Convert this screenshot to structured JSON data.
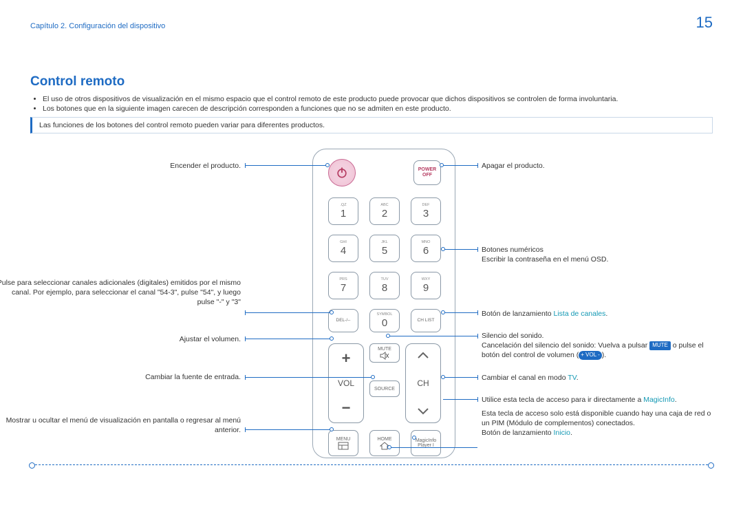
{
  "header": {
    "chapter": "Capítulo 2. Configuración del dispositivo",
    "page": "15"
  },
  "title": "Control remoto",
  "bullets": [
    "El uso de otros dispositivos de visualización en el mismo espacio que el control remoto de este producto puede provocar que dichos dispositivos se controlen de forma involuntaria.",
    "Los botones que en la siguiente imagen carecen de descripción corresponden a funciones que no se admiten en este producto."
  ],
  "note": "Las funciones de los botones del control remoto pueden variar para diferentes productos.",
  "remote": {
    "power_off_l1": "POWER",
    "power_off_l2": "OFF",
    "keys": [
      {
        "sup": ".QZ",
        "main": "1"
      },
      {
        "sup": "ABC",
        "main": "2"
      },
      {
        "sup": "DEF",
        "main": "3"
      },
      {
        "sup": "GHI",
        "main": "4"
      },
      {
        "sup": "JKL",
        "main": "5"
      },
      {
        "sup": "MNO",
        "main": "6"
      },
      {
        "sup": "PRS",
        "main": "7"
      },
      {
        "sup": "TUV",
        "main": "8"
      },
      {
        "sup": "WXY",
        "main": "9"
      }
    ],
    "del": "DEL-/--",
    "sym_sup": "SYMBOL",
    "zero": "0",
    "chlist": "CH LIST",
    "mute": "MUTE",
    "source": "SOURCE",
    "vol": "VOL",
    "ch": "CH",
    "menu": "MENU",
    "home": "HOME",
    "magic1": "MagicInfo",
    "magic2": "Player I"
  },
  "left_callouts": {
    "power": "Encender el producto.",
    "dash": "Pulse para seleccionar canales adicionales (digitales) emitidos por el mismo canal. Por ejemplo, para seleccionar el canal \"54-3\", pulse \"54\", y luego pulse \"-\" y \"3\"",
    "vol": "Ajustar el volumen.",
    "source": "Cambiar la fuente de entrada.",
    "menu": "Mostrar u ocultar el menú de visualización en pantalla o regresar al menú anterior."
  },
  "right_callouts": {
    "power_off": "Apagar el producto.",
    "num1": "Botones numéricos",
    "num2": "Escribir la contraseña en el menú OSD.",
    "chlist_pre": "Botón de lanzamiento ",
    "chlist_cyan": "Lista de canales",
    "mute1": "Silencio del sonido.",
    "mute2a": "Cancelación del silencio del sonido: Vuelva a pulsar ",
    "mute2_pill": "MUTE",
    "mute2b": " o pulse el botón del control de volumen (",
    "mute2_pill2": "+ VOL -",
    "mute2c": ").",
    "ch_pre": "Cambiar el canal en modo ",
    "ch_cyan": "TV",
    "magic_pre": "Utilice esta tecla de acceso para ir directamente a ",
    "magic_cyan": "MagicInfo",
    "home1": "Esta tecla de acceso solo está disponible cuando hay una caja de red o un PIM (Módulo de complementos) conectados.",
    "home2_pre": "Botón de lanzamiento ",
    "home2_cyan": "Inicio"
  }
}
